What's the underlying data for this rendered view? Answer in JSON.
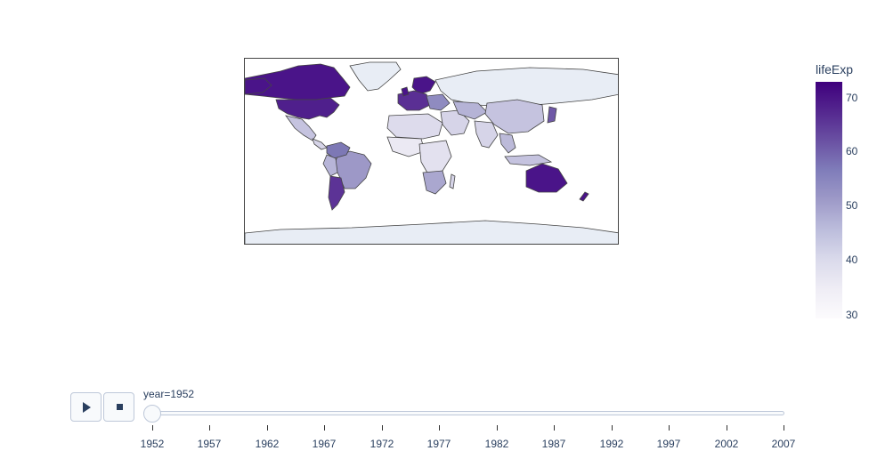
{
  "colorbar": {
    "title": "lifeExp",
    "ticks": [
      "70",
      "60",
      "50",
      "40",
      "30"
    ],
    "colors": [
      "#3f007d",
      "#54278f",
      "#6a51a3",
      "#807dba",
      "#9e9ac8",
      "#bcbddc",
      "#dadaeb",
      "#efedf5",
      "#fcfbfd"
    ]
  },
  "slider": {
    "label": "year=1952",
    "ticks": [
      "1952",
      "1957",
      "1962",
      "1967",
      "1972",
      "1977",
      "1982",
      "1987",
      "1992",
      "1997",
      "2002",
      "2007"
    ]
  },
  "buttons": {
    "play_icon": "play-icon",
    "stop_icon": "stop-icon"
  }
}
